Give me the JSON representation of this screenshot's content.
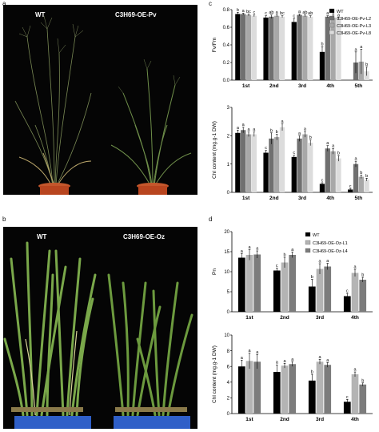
{
  "panels": {
    "a": {
      "label": "a",
      "left_text": "WT",
      "right_text": "C3H69-OE-Pv"
    },
    "b": {
      "label": "b",
      "left_text": "WT",
      "right_text": "C3H69-OE-Oz"
    },
    "c": {
      "label": "c"
    },
    "d": {
      "label": "d"
    }
  },
  "chart_data": [
    {
      "id": "c-top",
      "type": "bar",
      "categories": [
        "1st",
        "2nd",
        "3rd",
        "4th",
        "5th"
      ],
      "ylabel": "Fv/Fm",
      "ylim": [
        0,
        0.8
      ],
      "yticks": [
        "0.0",
        "0.2",
        "0.4",
        "0.6",
        "0.8"
      ],
      "ytick_values": [
        0,
        0.2,
        0.4,
        0.6,
        0.8
      ],
      "legend": [
        "WT",
        "C3H69-OE-Pv-L2",
        "C3H69-OE-Pv-L3",
        "C3H69-OE-Pv-L8"
      ],
      "colors": [
        "#000000",
        "#707070",
        "#a8a8a8",
        "#dcdcdc"
      ],
      "series": [
        {
          "name": "WT",
          "values": [
            0.75,
            0.71,
            0.66,
            0.32,
            0.0
          ],
          "err": [
            0.02,
            0.02,
            0.04,
            0.06,
            0.0
          ]
        },
        {
          "name": "C3H69-OE-Pv-L2",
          "values": [
            0.75,
            0.72,
            0.74,
            0.72,
            0.2
          ],
          "err": [
            0.01,
            0.02,
            0.01,
            0.01,
            0.12
          ]
        },
        {
          "name": "C3H69-OE-Pv-L3",
          "values": [
            0.74,
            0.73,
            0.73,
            0.71,
            0.21
          ],
          "err": [
            0.01,
            0.01,
            0.01,
            0.01,
            0.14
          ]
        },
        {
          "name": "C3H69-OE-Pv-L8",
          "values": [
            0.73,
            0.72,
            0.72,
            0.7,
            0.1
          ],
          "err": [
            0.01,
            0.01,
            0.01,
            0.01,
            0.05
          ]
        }
      ],
      "letters": [
        [
          "b",
          "a",
          "bc",
          "c"
        ],
        [
          "c",
          "ab",
          "a",
          "bc"
        ],
        [
          "c",
          "a",
          "ab",
          "ab"
        ],
        [
          "b",
          "a",
          "a",
          "a"
        ],
        [
          "",
          "a",
          "a",
          "b"
        ]
      ]
    },
    {
      "id": "c-bottom",
      "type": "bar",
      "categories": [
        "1st",
        "2nd",
        "3rd",
        "4th",
        "5th"
      ],
      "ylabel": "Chl content (mg.g-1 DW)",
      "ylim": [
        0,
        3
      ],
      "yticks": [
        "0",
        "1",
        "2",
        "3"
      ],
      "ytick_values": [
        0,
        1,
        2,
        3
      ],
      "colors": [
        "#000000",
        "#707070",
        "#a8a8a8",
        "#dcdcdc"
      ],
      "series": [
        {
          "name": "WT",
          "values": [
            2.1,
            1.4,
            1.25,
            0.3,
            0.1
          ],
          "err": [
            0.1,
            0.08,
            0.06,
            0.04,
            0.03
          ]
        },
        {
          "name": "C3H69-OE-Pv-L2",
          "values": [
            2.2,
            1.9,
            1.9,
            1.55,
            1.0
          ],
          "err": [
            0.1,
            0.2,
            0.1,
            0.1,
            0.1
          ]
        },
        {
          "name": "C3H69-OE-Pv-L3",
          "values": [
            2.05,
            1.95,
            2.05,
            1.45,
            0.55
          ],
          "err": [
            0.08,
            0.1,
            0.1,
            0.1,
            0.06
          ]
        },
        {
          "name": "C3H69-OE-Pv-L8",
          "values": [
            2.05,
            2.3,
            1.75,
            1.2,
            0.45
          ],
          "err": [
            0.08,
            0.12,
            0.1,
            0.1,
            0.05
          ]
        }
      ],
      "letters": [
        [
          "a",
          "a",
          "a",
          "a"
        ],
        [
          "c",
          "b",
          "b",
          "a"
        ],
        [
          "c",
          "a",
          "a",
          "b"
        ],
        [
          "c",
          "a",
          "a",
          "b"
        ],
        [
          "c",
          "a",
          "b",
          "b"
        ]
      ]
    },
    {
      "id": "d-top",
      "type": "bar",
      "categories": [
        "1st",
        "2nd",
        "3rd",
        "4th"
      ],
      "ylabel": "Pn",
      "ylim": [
        0,
        20
      ],
      "yticks": [
        "0",
        "5",
        "10",
        "15",
        "20"
      ],
      "ytick_values": [
        0,
        5,
        10,
        15,
        20
      ],
      "legend": [
        "WT",
        "C3H69-OE-Oz-L1",
        "C3H69-OE-Oz-L4"
      ],
      "colors": [
        "#000000",
        "#b4b4b4",
        "#7c7c7c"
      ],
      "series": [
        {
          "name": "WT",
          "values": [
            13.5,
            10.3,
            6.3,
            3.9
          ],
          "err": [
            1.0,
            0.6,
            1.8,
            0.7
          ]
        },
        {
          "name": "C3H69-OE-Oz-L1",
          "values": [
            14.2,
            12.3,
            10.7,
            9.7
          ],
          "err": [
            1.3,
            1.3,
            1.3,
            0.9
          ]
        },
        {
          "name": "C3H69-OE-Oz-L4",
          "values": [
            14.3,
            14.2,
            11.3,
            8.0
          ],
          "err": [
            0.9,
            0.7,
            0.8,
            0.6
          ]
        }
      ],
      "letters": [
        [
          "a",
          "a",
          "a"
        ],
        [
          "c",
          "b",
          "a"
        ],
        [
          "b",
          "a",
          "a"
        ],
        [
          "c",
          "a",
          "b"
        ]
      ]
    },
    {
      "id": "d-bottom",
      "type": "bar",
      "categories": [
        "1st",
        "2nd",
        "3rd",
        "4th"
      ],
      "ylabel": "Chl content (mg.g-1 DW)",
      "ylim": [
        0,
        10
      ],
      "yticks": [
        "0",
        "2",
        "4",
        "6",
        "8",
        "10"
      ],
      "ytick_values": [
        0,
        2,
        4,
        6,
        8,
        10
      ],
      "colors": [
        "#000000",
        "#b4b4b4",
        "#7c7c7c"
      ],
      "series": [
        {
          "name": "WT",
          "values": [
            6.0,
            5.3,
            4.2,
            1.5
          ],
          "err": [
            0.8,
            0.9,
            0.8,
            0.3
          ]
        },
        {
          "name": "C3H69-OE-Oz-L1",
          "values": [
            6.7,
            6.1,
            6.6,
            5.0
          ],
          "err": [
            1.0,
            0.3,
            0.3,
            0.3
          ]
        },
        {
          "name": "C3H69-OE-Oz-L4",
          "values": [
            6.6,
            6.3,
            6.2,
            3.7
          ],
          "err": [
            0.9,
            0.3,
            0.3,
            0.2
          ]
        }
      ],
      "letters": [
        [
          "a",
          "a",
          "a"
        ],
        [
          "a",
          "a",
          "a"
        ],
        [
          "b",
          "a",
          "a"
        ],
        [
          "c",
          "a",
          "b"
        ]
      ]
    }
  ]
}
